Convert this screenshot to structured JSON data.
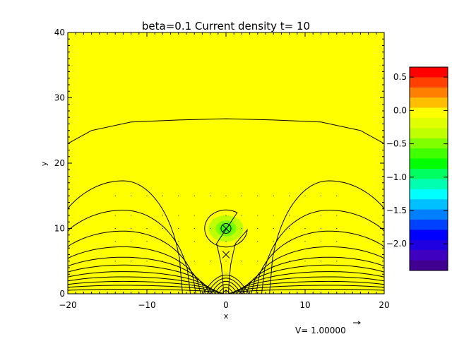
{
  "chart_data": {
    "type": "heatmap",
    "title": "beta=0.1 Current density t= 10",
    "xlabel": "x",
    "ylabel": "y",
    "xlim": [
      -20,
      20
    ],
    "ylim": [
      0,
      40
    ],
    "x_ticks": [
      -20,
      -10,
      0,
      10,
      20
    ],
    "x_tick_labels": [
      "−20",
      "−10",
      "0",
      "10",
      "20"
    ],
    "y_ticks": [
      0,
      10,
      20,
      30,
      40
    ],
    "y_tick_labels": [
      "0",
      "10",
      "20",
      "30",
      "40"
    ],
    "background_value": 0.0,
    "background_color": "#ffff00",
    "current_blob": {
      "x": 0,
      "y": 10,
      "radius": 2.2,
      "peak_value": -0.8
    },
    "markers": [
      {
        "symbol": "circled-x",
        "x": 0,
        "y": 10
      },
      {
        "symbol": "x",
        "x": 0,
        "y": 6
      }
    ],
    "colorbar": {
      "range": [
        -2.4,
        0.65
      ],
      "tick_values": [
        0.5,
        0.0,
        -0.5,
        -1.0,
        -1.5,
        -2.0
      ],
      "tick_labels": [
        "0.5",
        "0.0",
        "−0.5",
        "−1.0",
        "−1.5",
        "−2.0"
      ],
      "colors": [
        "#ff0000",
        "#ff4000",
        "#ff8000",
        "#ffbf00",
        "#ffff00",
        "#e0ff00",
        "#bfff00",
        "#80ff00",
        "#40ff00",
        "#00ff00",
        "#00ff60",
        "#00ffb0",
        "#00ffff",
        "#00c0ff",
        "#0080ff",
        "#0040ff",
        "#0000ff",
        "#2000e0",
        "#4000c0",
        "#400090"
      ]
    },
    "contour_lines": {
      "color": "#000000",
      "top_line_y_at_x": [
        [
          -20,
          23.0
        ],
        [
          -17,
          25.0
        ],
        [
          -12,
          26.3
        ],
        [
          -6,
          26.6
        ],
        [
          0,
          26.8
        ],
        [
          6,
          26.6
        ],
        [
          12,
          26.3
        ],
        [
          17,
          25.0
        ],
        [
          20,
          23.0
        ]
      ],
      "arch_footpoints_x": [
        0.3,
        0.6,
        0.9,
        1.3,
        1.7,
        2.1,
        2.6,
        3.2,
        3.8,
        4.5
      ],
      "arch_peak_y": [
        0.7,
        1.3,
        1.9,
        2.6,
        3.4,
        4.4,
        5.6,
        7.2,
        9.6,
        12.8
      ],
      "arch_center_x": 13,
      "outer_arch_peak_y": 17.3,
      "outer_arch_footpoint_x": 5.5,
      "loop_center": [
        0,
        10
      ],
      "loop_radius": 2.7,
      "inner_arcs_y": [
        0.6,
        1.2,
        1.8,
        2.4,
        3.0,
        3.6
      ]
    },
    "velocity_field": {
      "dot_grid_x": [
        -14,
        -12,
        -10,
        -8,
        -6,
        -4,
        -2,
        0,
        2,
        4,
        6,
        8,
        10,
        12,
        14
      ],
      "dot_grid_y": [
        5,
        8,
        10,
        12,
        15
      ],
      "reference_label": "V= 1.00000"
    }
  }
}
